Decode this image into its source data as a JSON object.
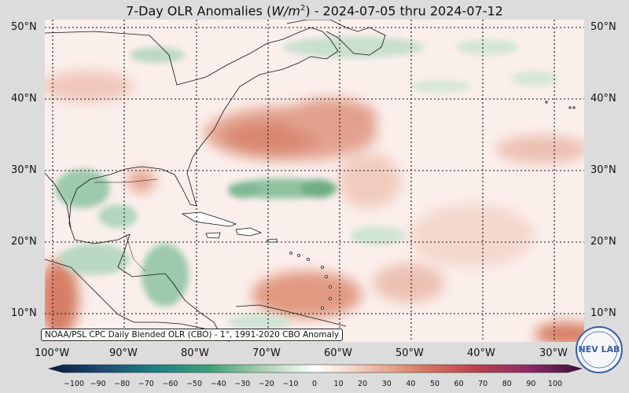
{
  "title": {
    "prefix": "7-Day OLR Anomalies (",
    "unit_base": "W/m",
    "unit_exp": "2",
    "suffix": ") - 2024-07-05 thru 2024-07-12"
  },
  "lat_labels": [
    "50°N",
    "40°N",
    "30°N",
    "20°N",
    "10°N"
  ],
  "lon_labels": [
    "100°W",
    "90°W",
    "80°W",
    "70°W",
    "60°W",
    "50°W",
    "40°W",
    "30°W"
  ],
  "credit": "NOAA/PSL CPC Daily Blended OLR (CBO) - 1°, 1991-2020 CBO Anomaly",
  "colorbar_ticks": [
    "−100",
    "−90",
    "−80",
    "−70",
    "−60",
    "−50",
    "−40",
    "−30",
    "−20",
    "−10",
    "0",
    "10",
    "20",
    "30",
    "40",
    "50",
    "60",
    "70",
    "80",
    "90",
    "100"
  ],
  "logo_text": "NEV LAB",
  "colors": {
    "positive": "#c8553d",
    "negative": "#3a8a5a",
    "neutral": "#faf1ee",
    "background": "#dcdcdc"
  }
}
